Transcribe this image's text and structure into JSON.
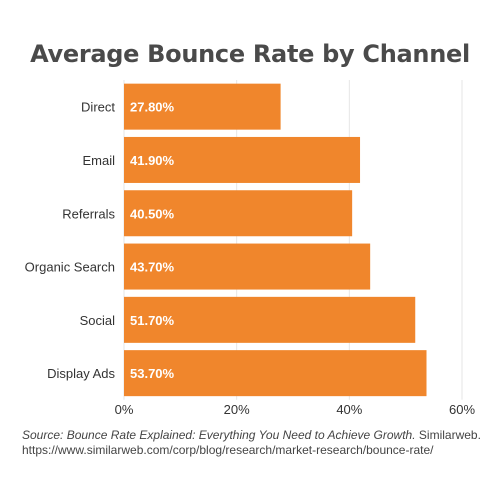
{
  "chart_data": {
    "type": "bar",
    "orientation": "horizontal",
    "title": "Average Bounce Rate by Channel",
    "categories": [
      "Direct",
      "Email",
      "Referrals",
      "Organic Search",
      "Social",
      "Display Ads"
    ],
    "values": [
      27.8,
      41.9,
      40.5,
      43.7,
      51.7,
      53.7
    ],
    "value_labels": [
      "27.80%",
      "41.90%",
      "40.50%",
      "43.70%",
      "51.70%",
      "53.70%"
    ],
    "xlim": [
      0,
      60
    ],
    "xticks": [
      0,
      20,
      40,
      60
    ],
    "xtick_labels": [
      "0%",
      "20%",
      "40%",
      "60%"
    ],
    "xlabel": "",
    "ylabel": "",
    "grid": true,
    "bar_color": "#f0862c",
    "value_label_color": "#ffffff"
  },
  "source": {
    "text": "Source: Bounce Rate Explained: Everything You Need to Achieve Growth.",
    "publisher": " Similarweb.",
    "url": "https://www.similarweb.com/corp/blog/research/market-research/bounce-rate/"
  }
}
